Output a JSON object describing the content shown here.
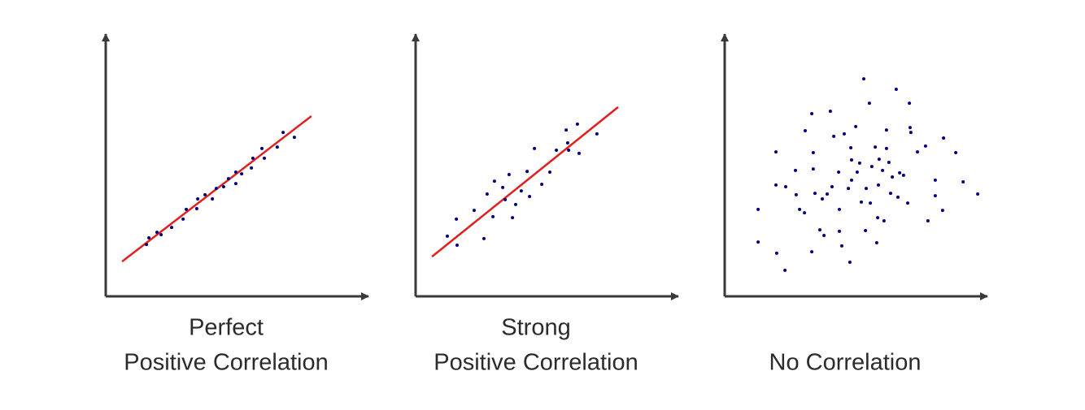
{
  "chart_data": [
    {
      "type": "scatter",
      "title": [
        "Perfect",
        "Positive Correlation"
      ],
      "color": "#000080",
      "xlim": [
        0,
        105
      ],
      "ylim": [
        0,
        105
      ],
      "x": [
        16.7,
        17.7,
        21,
        22.7,
        27,
        31.7,
        33,
        37.3,
        37.7,
        40.7,
        43.7,
        45.3,
        48.3,
        50.3,
        53.3,
        53.3,
        55.7,
        59.7,
        60.3,
        64,
        65,
        70.3,
        72.7,
        77.3
      ],
      "y": [
        21.3,
        24,
        26.3,
        25.3,
        28.3,
        31.7,
        35.7,
        36,
        40,
        41.7,
        40,
        44.3,
        45,
        48.3,
        46.3,
        51,
        50.3,
        52.7,
        56.7,
        60.7,
        56.7,
        61.3,
        67.3,
        65.3
      ],
      "trendline": {
        "x": [
          6.7,
          84.3
        ],
        "y": [
          14.3,
          74
        ],
        "color": "#e0201e"
      }
    },
    {
      "type": "scatter",
      "title": [
        "Strong",
        "Positive Correlation"
      ],
      "color": "#000080",
      "xlim": [
        0,
        105
      ],
      "ylim": [
        0,
        105
      ],
      "x": [
        13,
        16.7,
        17,
        24,
        28,
        29.3,
        31.7,
        32.3,
        35.7,
        36.7,
        38.3,
        39.7,
        41,
        43.3,
        45.7,
        46.7,
        48.7,
        51.7,
        55,
        57.7,
        61.7,
        62.3,
        62.7,
        66.3,
        67,
        74.3
      ],
      "y": [
        24.7,
        31.7,
        21,
        35.3,
        23.7,
        42,
        32.7,
        47.3,
        44.7,
        39.7,
        50,
        32.3,
        37.7,
        43.3,
        51.3,
        41,
        60.7,
        46,
        51,
        60,
        68.3,
        63,
        60,
        70.7,
        58.7,
        66.7
      ],
      "trendline": {
        "x": [
          6.7,
          83
        ],
        "y": [
          16.3,
          77.7
        ],
        "color": "#e0201e"
      }
    },
    {
      "type": "scatter",
      "title": [
        "No Correlation"
      ],
      "color": "#000080",
      "xlim": [
        0,
        105
      ],
      "ylim": [
        0,
        105
      ],
      "x": [
        13.7,
        13.7,
        21,
        21,
        21.3,
        24.7,
        25,
        29,
        29.3,
        30.7,
        32.7,
        33,
        35.7,
        35.7,
        36.3,
        36.3,
        37,
        39,
        40,
        40.7,
        42,
        43.3,
        44,
        44.7,
        46.7,
        47,
        47,
        48,
        49,
        50.7,
        51.3,
        51.7,
        52,
        52,
        53.7,
        54.3,
        55.3,
        56,
        57,
        57.7,
        58,
        59.3,
        59.7,
        60.3,
        61.7,
        62.3,
        62.7,
        63,
        63.3,
        64.7,
        65.3,
        66.3,
        66.3,
        67.3,
        68,
        68.7,
        70.3,
        71,
        71.7,
        73.3,
        75,
        75.7,
        76,
        76.3,
        79,
        82.3,
        83.3,
        86.3,
        86.3,
        89.3,
        89.7,
        94.7,
        97.7,
        103.7
      ],
      "y": [
        35.7,
        22.3,
        59.3,
        45.7,
        17.7,
        10.7,
        45,
        51.7,
        41.7,
        35.7,
        34.3,
        68,
        75,
        18.3,
        59,
        52.3,
        42.3,
        27.3,
        40,
        25,
        42,
        76,
        45,
        65.7,
        51,
        26.7,
        35.7,
        20.7,
        66.7,
        44.3,
        14,
        61,
        56,
        47.7,
        69.7,
        51,
        54.7,
        38.7,
        89.3,
        27,
        44.3,
        79.3,
        38.3,
        53.3,
        61.3,
        22,
        32.3,
        45.7,
        56.3,
        51.7,
        31,
        68.3,
        60.7,
        55,
        42.3,
        49,
        85,
        40.7,
        50.7,
        49.7,
        38.3,
        79.3,
        69.3,
        67.3,
        59.3,
        61.7,
        31,
        47.7,
        41.3,
        35.3,
        65,
        59,
        47,
        42
      ]
    }
  ]
}
